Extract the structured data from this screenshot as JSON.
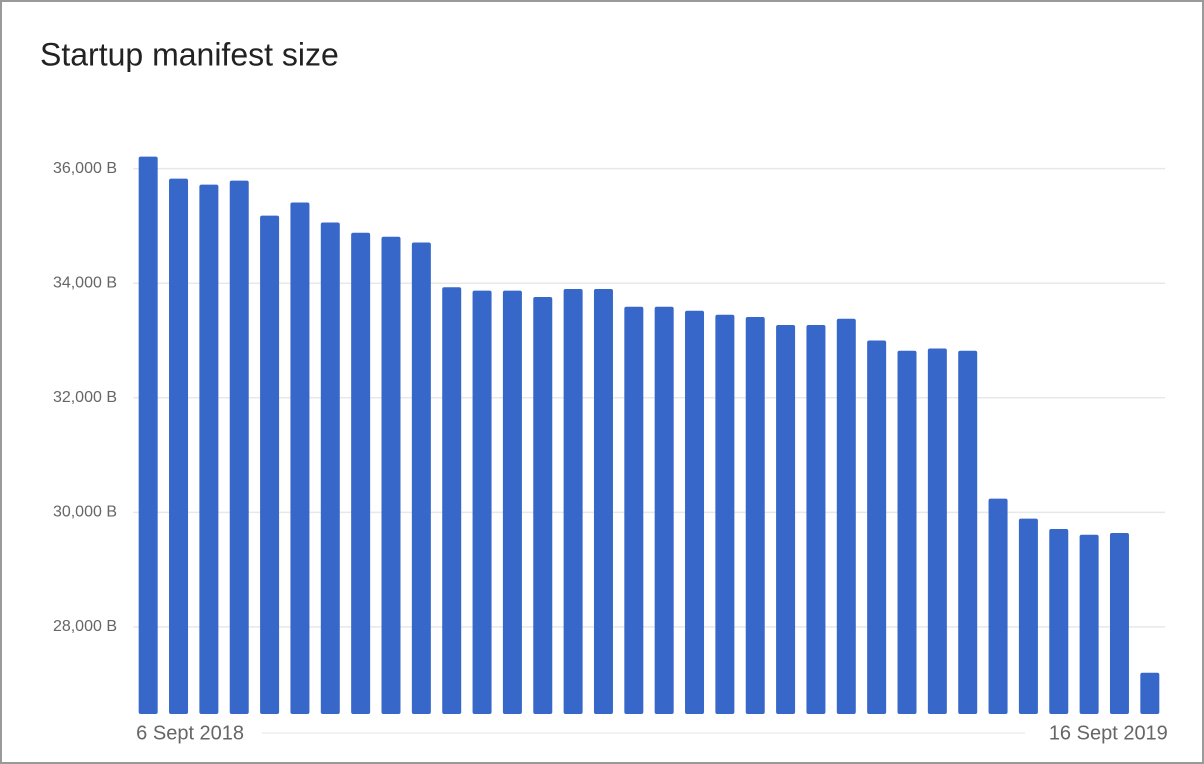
{
  "chart_data": {
    "type": "bar",
    "title": "Startup manifest size",
    "categories": [
      "6 Sept 2018",
      null,
      null,
      null,
      null,
      null,
      null,
      null,
      null,
      null,
      null,
      null,
      null,
      null,
      null,
      null,
      null,
      null,
      null,
      null,
      null,
      null,
      null,
      null,
      null,
      null,
      null,
      null,
      null,
      null,
      null,
      null,
      null,
      "16 Sept 2019"
    ],
    "values": [
      36210,
      35825,
      35720,
      35790,
      35180,
      35410,
      35060,
      34880,
      34810,
      34710,
      33930,
      33870,
      33870,
      33760,
      33900,
      33900,
      33590,
      33590,
      33520,
      33450,
      33410,
      33270,
      33270,
      33380,
      33000,
      32820,
      32860,
      32820,
      30240,
      29890,
      29710,
      29610,
      29640,
      27200
    ],
    "color": "#3767c9",
    "ylim": [
      26480,
      36500
    ],
    "yticks": [
      {
        "value": 28000,
        "label": "28,000 B"
      },
      {
        "value": 30000,
        "label": "30,000 B"
      },
      {
        "value": 32000,
        "label": "32,000 B"
      },
      {
        "value": 34000,
        "label": "34,000 B"
      },
      {
        "value": 36000,
        "label": "36,000 B"
      }
    ],
    "grid": true
  }
}
